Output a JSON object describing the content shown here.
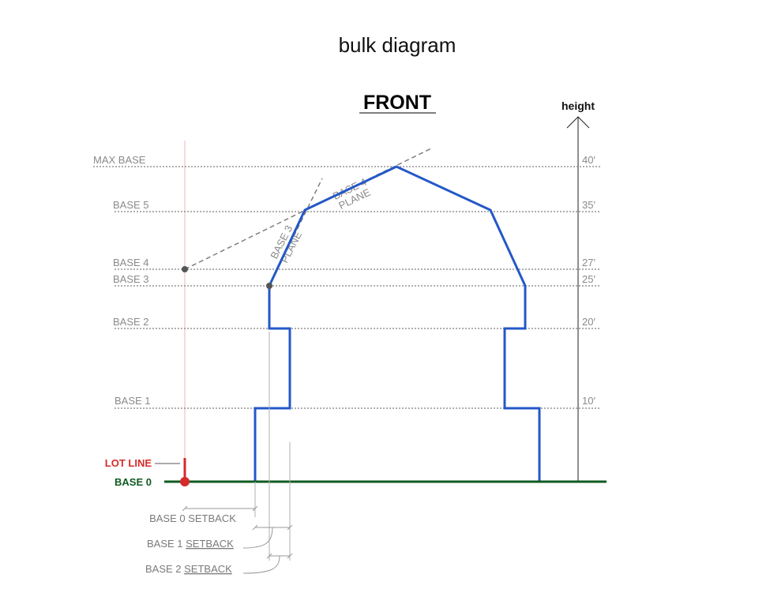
{
  "title": "bulk diagram",
  "view_label": "FRONT",
  "axis": {
    "label": "height"
  },
  "levels": [
    {
      "name": "MAX BASE",
      "value": "40′"
    },
    {
      "name": "BASE 5",
      "value": "35′"
    },
    {
      "name": "BASE 4",
      "value": "27′"
    },
    {
      "name": "BASE 3",
      "value": "25′"
    },
    {
      "name": "BASE 2",
      "value": "20′"
    },
    {
      "name": "BASE 1",
      "value": "10′"
    }
  ],
  "base0_label": "BASE 0",
  "lot_line_label": "LOT LINE",
  "planes": {
    "base4_line1": "BASE 4",
    "base4_line2": "PLANE",
    "base3_line1": "BASE 3",
    "base3_line2": "PLANE"
  },
  "setbacks": {
    "base0_prefix": "BASE 0 ",
    "base0_word": "SETBACK",
    "base1_prefix": "BASE 1 ",
    "base1_word": "SETBACK",
    "base2_prefix": "BASE 2 ",
    "base2_word": "SETBACK"
  },
  "colors": {
    "building": "#2458c8",
    "ground": "#0f5a22",
    "lot_line": "#d62b2b",
    "lot_line_faint": "#f2b6b6",
    "guide": "#7f7f7f"
  }
}
